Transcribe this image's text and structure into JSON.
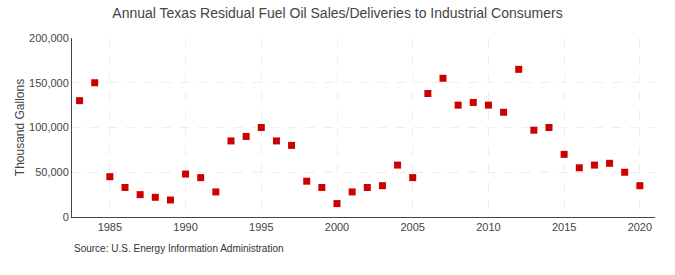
{
  "chart_data": {
    "type": "scatter",
    "title": "Annual Texas Residual Fuel Oil Sales/Deliveries to Industrial Consumers",
    "ylabel": "Thousand Gallons",
    "source": "Source: U.S. Energy Information Administration",
    "x": [
      1983,
      1984,
      1985,
      1986,
      1987,
      1988,
      1989,
      1990,
      1991,
      1992,
      1993,
      1994,
      1995,
      1996,
      1997,
      1998,
      1999,
      2000,
      2001,
      2002,
      2003,
      2004,
      2005,
      2006,
      2007,
      2008,
      2009,
      2010,
      2011,
      2012,
      2013,
      2014,
      2015,
      2016,
      2017,
      2018,
      2019,
      2020
    ],
    "values": [
      130000,
      150000,
      45000,
      33000,
      25000,
      22000,
      19000,
      48000,
      44000,
      28000,
      85000,
      90000,
      100000,
      85000,
      80000,
      40000,
      33000,
      15000,
      28000,
      33000,
      35000,
      58000,
      44000,
      138000,
      155000,
      125000,
      128000,
      125000,
      117000,
      165000,
      97000,
      100000,
      70000,
      55000,
      58000,
      60000,
      50000,
      35000
    ],
    "color": "#cc0000",
    "marker": "square",
    "xlim": [
      1982.5,
      2021
    ],
    "xticks": [
      1985,
      1990,
      1995,
      2000,
      2005,
      2010,
      2015,
      2020
    ],
    "ylim": [
      0,
      200000
    ],
    "yticks": [
      0,
      {
        "value": 50000,
        "label": "50,000"
      },
      {
        "value": 100000,
        "label": "100,000"
      },
      {
        "value": 150000,
        "label": "150,000"
      },
      {
        "value": 200000,
        "label": "200,000"
      }
    ],
    "grid": true
  }
}
